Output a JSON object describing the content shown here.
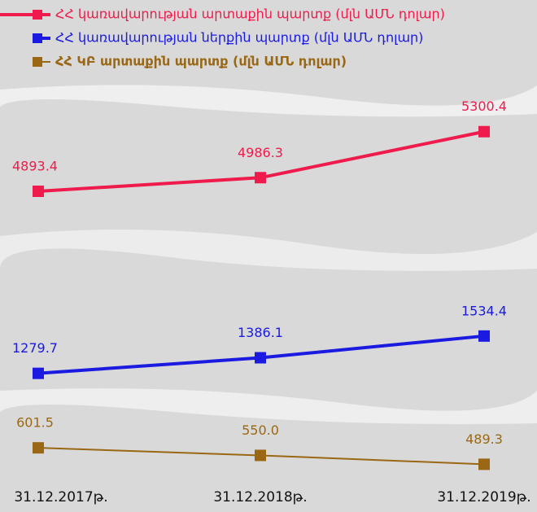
{
  "chart_data": {
    "type": "line",
    "categories": [
      "31.12.2017թ.",
      "31.12.2018թ.",
      "31.12.2019թ."
    ],
    "series": [
      {
        "name": "ՀՀ ԿԲ արտաքին պարտք (մլն ԱՄՆ դոլար)",
        "color": "#9a6814",
        "values": [
          601.5,
          550.0,
          489.3
        ],
        "value_labels": [
          "601.5",
          "550.0",
          "489.3"
        ]
      },
      {
        "name": "ՀՀ կառավարության ներքին պարտք (մլն ԱՄՆ դոլար)",
        "color": "#1a1ae0",
        "values": [
          1279.7,
          1386.1,
          1534.4
        ],
        "value_labels": [
          "1279.7",
          "1386.1",
          "1534.4"
        ]
      },
      {
        "name": "ՀՀ կառավարության արտաքին պարտք (մլն ԱՄՆ դոլար)",
        "color": "#ee1b4c",
        "values": [
          4893.4,
          4986.3,
          5300.4
        ],
        "value_labels": [
          "4893.4",
          "4986.3",
          "5300.4"
        ]
      }
    ]
  }
}
